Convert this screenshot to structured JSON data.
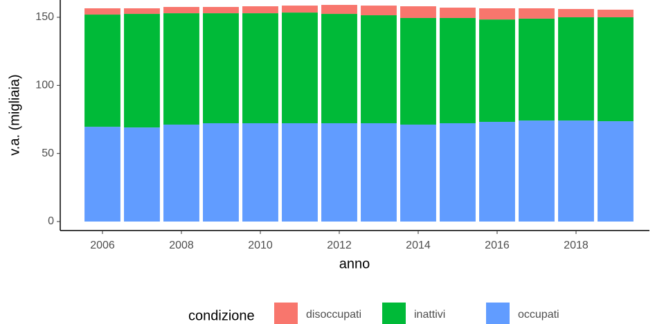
{
  "chart_data": {
    "type": "bar",
    "stacked": true,
    "x": [
      2006,
      2007,
      2008,
      2009,
      2010,
      2011,
      2012,
      2013,
      2014,
      2015,
      2016,
      2017,
      2018,
      2019
    ],
    "xlabel": "anno",
    "ylabel": "v.a. (migliaia)",
    "legend_title": "condizione",
    "legend_position": "bottom",
    "series": [
      {
        "name": "occupati",
        "color": "#619CFF",
        "values": [
          69.6,
          69.1,
          71.2,
          72.2,
          72.2,
          72.2,
          72.2,
          72.2,
          71.2,
          72.2,
          73.2,
          74.2,
          74.2,
          73.7
        ]
      },
      {
        "name": "inattivi",
        "color": "#00BA38",
        "values": [
          82.4,
          83.4,
          81.8,
          80.8,
          80.8,
          81.3,
          80.3,
          79.3,
          78.3,
          77.3,
          75.2,
          74.8,
          75.8,
          76.3
        ]
      },
      {
        "name": "disoccupati",
        "color": "#F8766D",
        "values": [
          4.6,
          4.1,
          4.6,
          4.6,
          5.1,
          5.1,
          6.6,
          7.1,
          8.6,
          7.6,
          8.2,
          7.6,
          6.1,
          5.6
        ]
      }
    ],
    "legend_order": [
      2,
      1,
      0
    ],
    "xlim": [
      2004.93,
      2019.86
    ],
    "xticks": [
      2006,
      2008,
      2010,
      2012,
      2014,
      2016,
      2018
    ],
    "ylim": [
      -6.6,
      162.7
    ],
    "yticks": [
      0,
      50,
      100,
      150
    ]
  }
}
